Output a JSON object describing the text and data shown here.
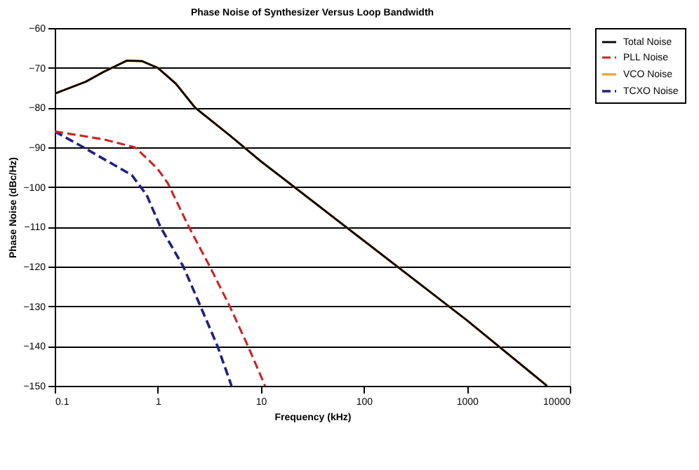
{
  "chart_data": {
    "type": "line",
    "title": "Phase Noise of Synthesizer Versus Loop Bandwidth",
    "xlabel": "Frequency (kHz)",
    "ylabel": "Phase Noise (dBc/Hz)",
    "log": "x",
    "xlim": [
      0.1,
      10000
    ],
    "xticks": [
      0.1,
      1,
      10,
      100,
      1000,
      10000
    ],
    "ylim": [
      -150,
      -60
    ],
    "yticks": [
      -60,
      -70,
      -80,
      -90,
      -100,
      -110,
      -120,
      -130,
      -140,
      -150
    ],
    "grid": "y",
    "legend": "right",
    "marker": "none",
    "series": [
      {
        "name": "Total Noise",
        "color": "#000000",
        "line_style": "solid",
        "x": [
          0.1,
          0.2,
          0.3,
          0.5,
          0.7,
          1,
          1.5,
          2.3,
          5,
          10,
          20,
          100,
          1000,
          6000
        ],
        "values": [
          -76.5,
          -73.5,
          -71,
          -68.2,
          -68.3,
          -70,
          -74,
          -80,
          -87,
          -93.5,
          -99.5,
          -113.5,
          -133.5,
          -150
        ]
      },
      {
        "name": "PLL Noise",
        "color": "#cc2222",
        "line_style": "dashed",
        "x": [
          0.1,
          0.3,
          0.6,
          0.8,
          1,
          1.25,
          2,
          3.2,
          5,
          7.5,
          11
        ],
        "values": [
          -86,
          -88,
          -90,
          -93,
          -95.5,
          -99,
          -110,
          -120,
          -130,
          -140,
          -150
        ]
      },
      {
        "name": "VCO Noise",
        "color": "#f0a040",
        "line_style": "solid",
        "x": [
          0.1,
          0.2,
          0.3,
          0.5,
          0.7,
          1,
          1.5,
          2.3,
          5,
          10,
          20,
          100,
          1000,
          6000
        ],
        "values": [
          -76.5,
          -73.5,
          -71,
          -68.2,
          -68.3,
          -70,
          -74,
          -80,
          -87,
          -93.5,
          -99.5,
          -113.5,
          -133.5,
          -150
        ]
      },
      {
        "name": "TCXO Noise",
        "color": "#202080",
        "line_style": "dashed",
        "x": [
          0.1,
          0.19,
          0.56,
          0.78,
          1.06,
          1.77,
          2.6,
          3.8,
          5.2
        ],
        "values": [
          -86,
          -90,
          -97,
          -102,
          -110,
          -120,
          -130,
          -140,
          -150
        ]
      }
    ]
  }
}
